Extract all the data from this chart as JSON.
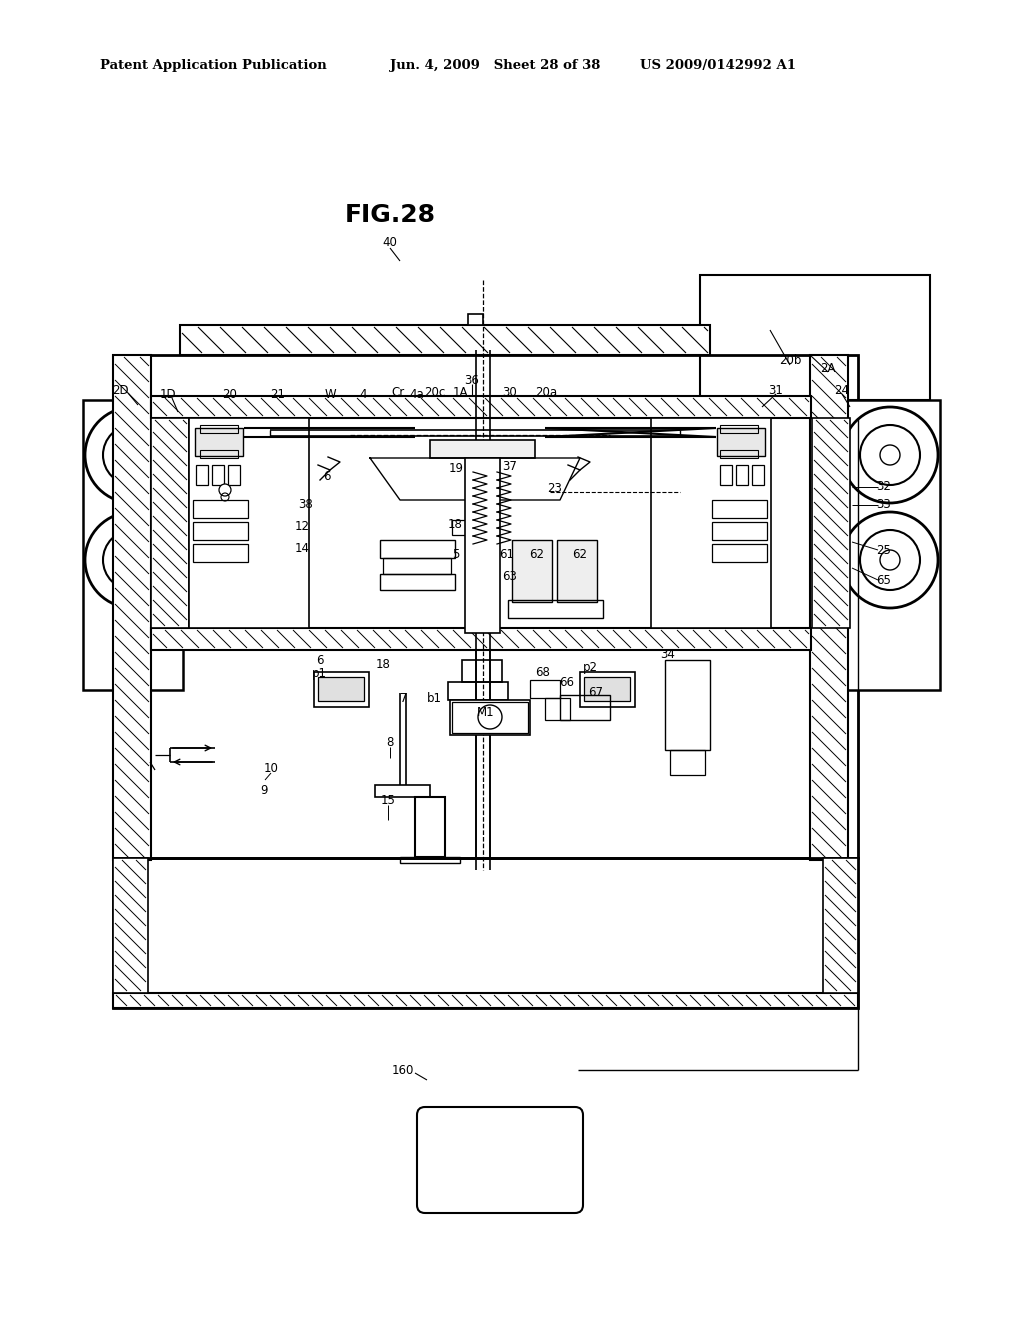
{
  "header_left": "Patent Application Publication",
  "header_mid": "Jun. 4, 2009   Sheet 28 of 38",
  "header_right": "US 2009/0142992 A1",
  "figure_label": "FIG.28",
  "bg_color": "#ffffff",
  "fig_width": 10.24,
  "fig_height": 13.2,
  "dpi": 100
}
